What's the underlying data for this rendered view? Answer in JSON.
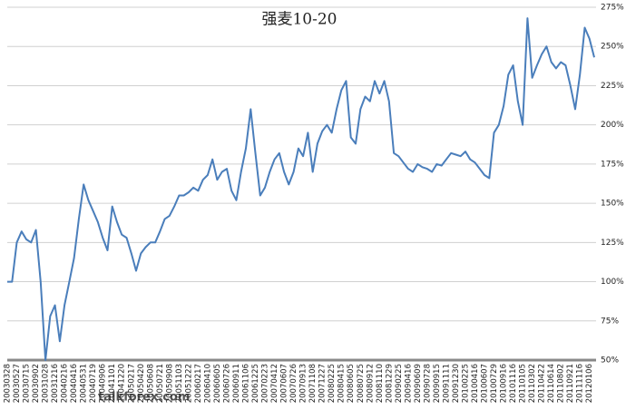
{
  "chart_data": {
    "type": "line",
    "title": "强麦10-20",
    "watermark": "talkforex.com",
    "color": "#4a7ebb",
    "grid": true,
    "ylim": [
      50,
      275
    ],
    "yticks": [
      {
        "value": 50,
        "label": "50%"
      },
      {
        "value": 75,
        "label": "75%"
      },
      {
        "value": 100,
        "label": "100%"
      },
      {
        "value": 125,
        "label": "125%"
      },
      {
        "value": 150,
        "label": "150%"
      },
      {
        "value": 175,
        "label": "175%"
      },
      {
        "value": 200,
        "label": "200%"
      },
      {
        "value": 225,
        "label": "225%"
      },
      {
        "value": 250,
        "label": "250%"
      },
      {
        "value": 275,
        "label": "275%"
      }
    ],
    "categories": [
      "20030328",
      null,
      "20030527",
      null,
      "20030715",
      null,
      "20030902",
      null,
      "20031028",
      null,
      "20031216",
      null,
      "20040216",
      null,
      "20040416",
      null,
      "20040531",
      null,
      "20040719",
      null,
      "20040906",
      null,
      "20041101",
      null,
      "20041220",
      null,
      "20050217",
      null,
      "20050420",
      null,
      "20050608",
      null,
      "20050721",
      null,
      "20050908",
      null,
      "20051103",
      null,
      "20051222",
      null,
      "20060217",
      null,
      "20060410",
      null,
      "20060605",
      null,
      "20060726",
      null,
      "20060911",
      null,
      "20061106",
      null,
      "20061225",
      null,
      "20070223",
      null,
      "20070412",
      null,
      "20070607",
      null,
      "20070726",
      null,
      "20070913",
      null,
      "20071108",
      null,
      "20071227",
      null,
      "20080225",
      null,
      "20080415",
      null,
      "20080605",
      null,
      "20080725",
      null,
      "20080912",
      null,
      "20081110",
      null,
      "20081229",
      null,
      "20090225",
      null,
      "20090416",
      null,
      "20090609",
      null,
      "20090728",
      null,
      "20090915",
      null,
      "20091111",
      null,
      "20091230",
      null,
      "20100225",
      null,
      "20100416",
      null,
      "20100607",
      null,
      "20100729",
      null,
      "20100916",
      null,
      "20101116",
      null,
      "20110105",
      null,
      "20110302",
      null,
      "20110422",
      null,
      "20110614",
      null,
      "20110802",
      null,
      "20110921",
      null,
      "20111116",
      null,
      "20120106",
      null
    ],
    "values": [
      100,
      100,
      125,
      132,
      127,
      125,
      133,
      100,
      50,
      78,
      85,
      62,
      85,
      100,
      115,
      140,
      162,
      152,
      145,
      138,
      128,
      120,
      148,
      138,
      130,
      128,
      118,
      107,
      118,
      122,
      125,
      125,
      132,
      140,
      142,
      148,
      155,
      155,
      157,
      160,
      158,
      165,
      168,
      178,
      165,
      170,
      172,
      158,
      152,
      170,
      185,
      210,
      182,
      155,
      160,
      170,
      178,
      182,
      170,
      162,
      170,
      185,
      180,
      195,
      170,
      188,
      196,
      200,
      195,
      210,
      222,
      228,
      192,
      188,
      210,
      218,
      215,
      228,
      220,
      228,
      215,
      182,
      180,
      176,
      172,
      170,
      175,
      173,
      172,
      170,
      175,
      174,
      178,
      182,
      181,
      180,
      183,
      178,
      176,
      172,
      168,
      166,
      195,
      200,
      212,
      232,
      238,
      215,
      200,
      268,
      230,
      238,
      245,
      250,
      240,
      236,
      240,
      238,
      225,
      210,
      232,
      262,
      255,
      243
    ]
  }
}
